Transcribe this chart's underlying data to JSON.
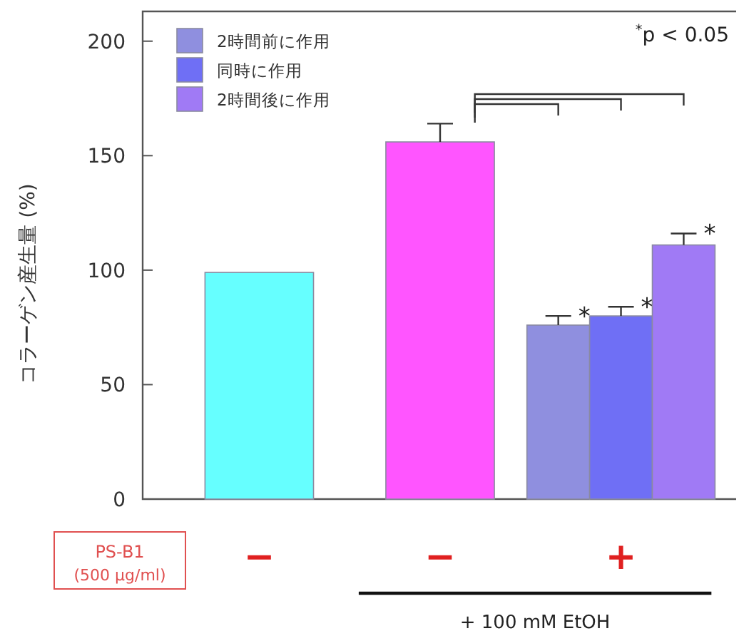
{
  "chart_data": {
    "type": "bar",
    "ylabel": "コラーゲン産生量 (%)",
    "categories": [
      "−",
      "−",
      "+"
    ],
    "ylim": [
      0,
      213
    ],
    "yticks": [
      0,
      50,
      100,
      150,
      200
    ],
    "grid": false,
    "legend": "top left",
    "series": [
      {
        "colors": [
          "#66ffff",
          "#ff55ff",
          null
        ],
        "values": [
          99,
          156,
          null
        ],
        "errors": [
          null,
          8,
          null
        ]
      },
      {
        "name": "2時間前に作用",
        "color": "#8f8fdf",
        "values": [
          null,
          null,
          76
        ],
        "errors": [
          null,
          null,
          4
        ],
        "value_labels": [
          null,
          null,
          "*"
        ]
      },
      {
        "name": "同時に作用",
        "color": "#6f6ff5",
        "values": [
          null,
          null,
          80
        ],
        "errors": [
          null,
          null,
          4
        ],
        "value_labels": [
          null,
          null,
          "*"
        ]
      },
      {
        "name": "2時間後に作用",
        "color": "#a07af5",
        "values": [
          null,
          null,
          111
        ],
        "errors": [
          null,
          null,
          5
        ],
        "value_labels": [
          null,
          null,
          "*"
        ]
      }
    ],
    "annotations": [
      "$^{*}$p < 0.05",
      "PS-B1",
      "(500 μg/ml)",
      "+ 100 mM EtOH"
    ]
  }
}
